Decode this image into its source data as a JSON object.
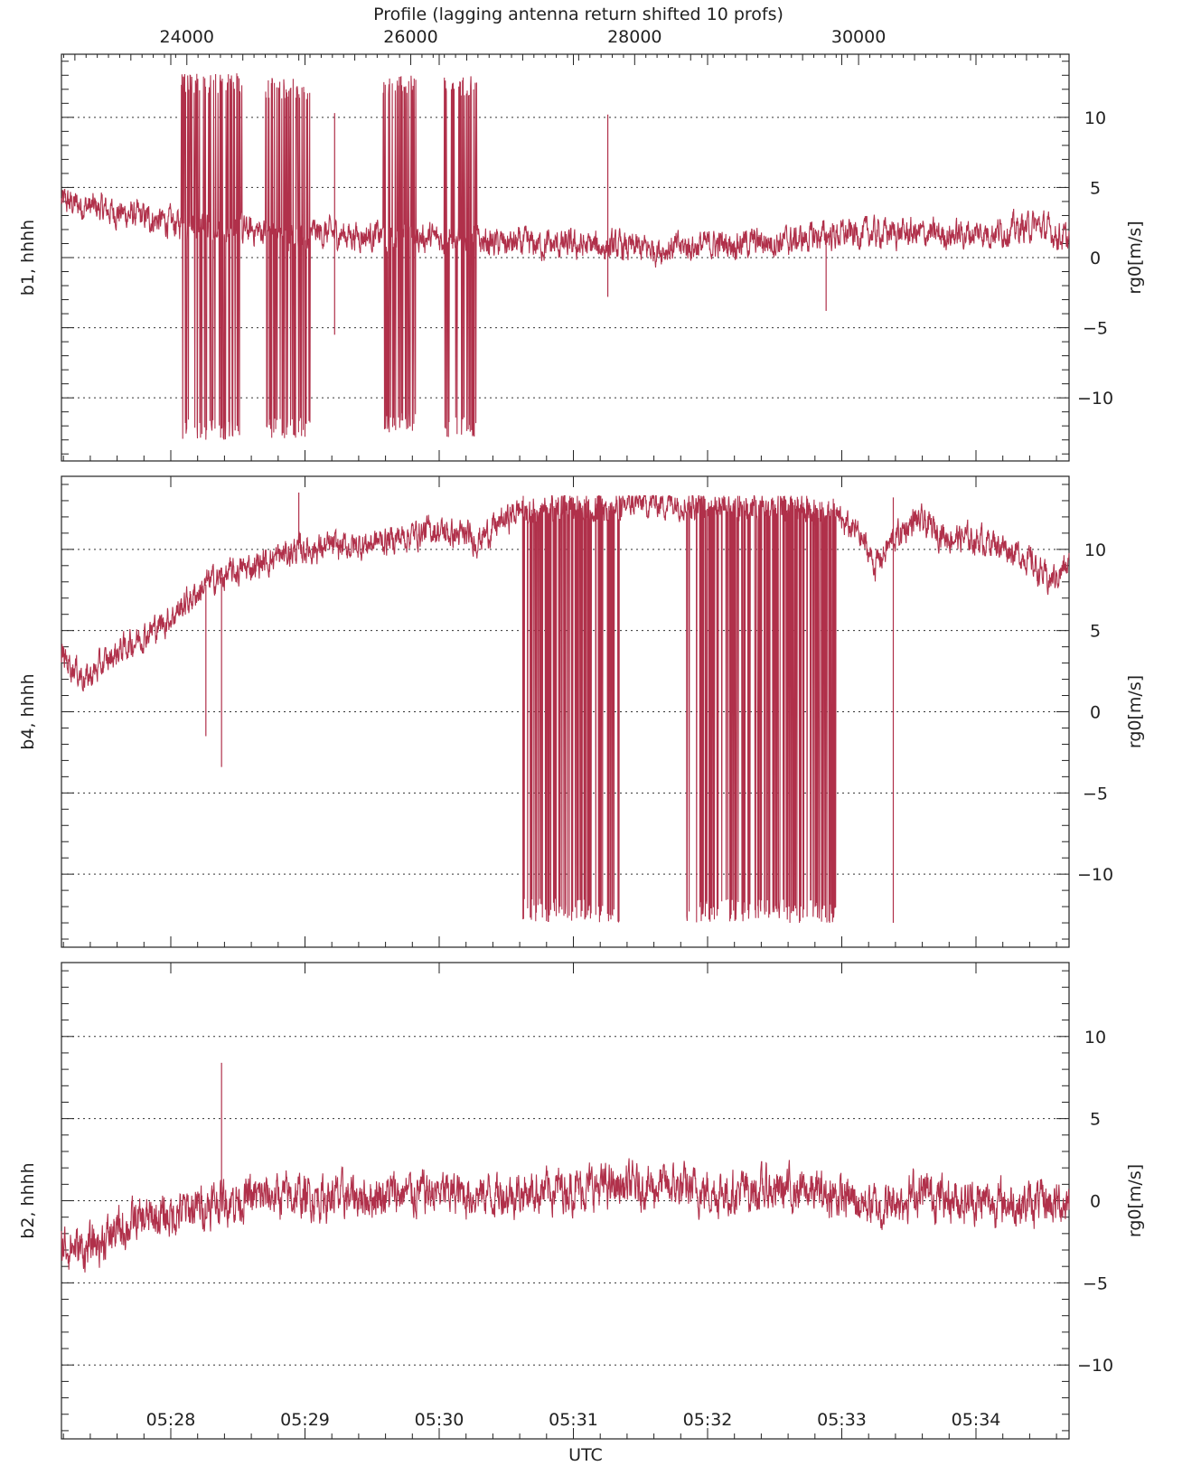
{
  "chart_data": {
    "type": "line",
    "top_axis": {
      "title": "Profile (lagging antenna return shifted 10 profs)",
      "ticks": [
        24000,
        26000,
        28000,
        30000
      ],
      "minor_step": 500
    },
    "bottom_axis": {
      "title": "UTC",
      "tick_labels": [
        "05:28",
        "05:29",
        "05:30",
        "05:31",
        "05:32",
        "05:33",
        "05:34"
      ],
      "range_profile": [
        22880,
        31880
      ]
    },
    "line_color": "#b0304a",
    "grid": "dotted horizontal at ±5, ±10, 0",
    "panels": [
      {
        "label": "b1, hhhh",
        "ylabel": "rg0[m/s]",
        "ylim": [
          -14.5,
          14.5
        ],
        "yticks": [
          -10,
          -5,
          0,
          5,
          10
        ],
        "tick_labels": [
          "−10",
          "−5",
          "0",
          "5",
          "10"
        ],
        "baseline": [
          [
            22880,
            4.0
          ],
          [
            23400,
            3.2
          ],
          [
            23900,
            2.4
          ],
          [
            24400,
            2.0
          ],
          [
            25000,
            1.8
          ],
          [
            25600,
            1.6
          ],
          [
            26200,
            1.4
          ],
          [
            26800,
            1.0
          ],
          [
            27600,
            0.8
          ],
          [
            28200,
            0.6
          ],
          [
            28800,
            1.0
          ],
          [
            29400,
            1.2
          ],
          [
            29700,
            1.6
          ],
          [
            30300,
            1.8
          ],
          [
            30800,
            1.6
          ],
          [
            31300,
            1.9
          ],
          [
            31600,
            2.3
          ],
          [
            31880,
            1.2
          ]
        ],
        "noise": 0.7,
        "burst_ranges": [
          [
            23950,
            24500,
            13.2,
            -13.0
          ],
          [
            24700,
            25100,
            12.8,
            -12.9
          ],
          [
            25750,
            26050,
            13.0,
            -12.5
          ],
          [
            26300,
            26600,
            13.0,
            -12.9
          ]
        ],
        "spikes": [
          [
            27760,
            10.2
          ],
          [
            27760,
            -2.8
          ],
          [
            29710,
            -3.8
          ],
          [
            25320,
            10.3
          ],
          [
            25320,
            -5.5
          ]
        ]
      },
      {
        "label": "b4, hhhh",
        "ylabel": "rg0[m/s]",
        "ylim": [
          -14.5,
          14.5
        ],
        "yticks": [
          -10,
          -5,
          0,
          5,
          10
        ],
        "tick_labels": [
          "−10",
          "−5",
          "0",
          "5",
          "10"
        ],
        "baseline": [
          [
            22880,
            3.5
          ],
          [
            23100,
            2.0
          ],
          [
            23400,
            3.8
          ],
          [
            23800,
            5.5
          ],
          [
            24200,
            8.0
          ],
          [
            24600,
            9.0
          ],
          [
            25000,
            10.0
          ],
          [
            25500,
            10.2
          ],
          [
            25800,
            10.6
          ],
          [
            26200,
            11.2
          ],
          [
            26600,
            10.6
          ],
          [
            27000,
            12.6
          ],
          [
            28000,
            12.8
          ],
          [
            28600,
            13.0
          ],
          [
            29000,
            12.8
          ],
          [
            29500,
            12.6
          ],
          [
            29800,
            11.8
          ],
          [
            30000,
            11.0
          ],
          [
            30150,
            9.0
          ],
          [
            30300,
            10.5
          ],
          [
            30500,
            11.8
          ],
          [
            30800,
            10.8
          ],
          [
            31200,
            10.5
          ],
          [
            31500,
            9.5
          ],
          [
            31700,
            8.0
          ],
          [
            31880,
            9.0
          ]
        ],
        "noise": 0.6,
        "burst_ranges": [
          [
            27000,
            27900,
            13.2,
            -13.0
          ],
          [
            28450,
            29800,
            13.2,
            -13.0
          ]
        ],
        "spikes": [
          [
            24170,
            -1.5
          ],
          [
            24310,
            -3.4
          ],
          [
            25000,
            13.5
          ],
          [
            30310,
            13.2
          ],
          [
            30310,
            -13.0
          ]
        ]
      },
      {
        "label": "b2, hhhh",
        "ylabel": "rg0[m/s]",
        "ylim": [
          -14.5,
          14.5
        ],
        "yticks": [
          -10,
          -5,
          0,
          5,
          10
        ],
        "tick_labels": [
          "−10",
          "−5",
          "0",
          "5",
          "10"
        ],
        "baseline": [
          [
            22880,
            -2.6
          ],
          [
            23100,
            -3.0
          ],
          [
            23500,
            -1.4
          ],
          [
            23900,
            -0.8
          ],
          [
            24300,
            0.0
          ],
          [
            24800,
            0.3
          ],
          [
            25400,
            0.2
          ],
          [
            26000,
            0.5
          ],
          [
            26800,
            0.4
          ],
          [
            27500,
            0.8
          ],
          [
            28200,
            0.9
          ],
          [
            28800,
            0.5
          ],
          [
            29400,
            0.7
          ],
          [
            29800,
            0.3
          ],
          [
            30200,
            -0.4
          ],
          [
            30500,
            0.5
          ],
          [
            31000,
            0.0
          ],
          [
            31500,
            -0.2
          ],
          [
            31880,
            -0.1
          ]
        ],
        "noise": 0.9,
        "burst_ranges": [],
        "spikes": [
          [
            24310,
            8.4
          ]
        ]
      }
    ]
  }
}
